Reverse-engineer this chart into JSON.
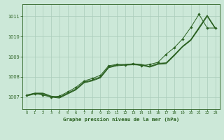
{
  "title": "Graphe pression niveau de la mer (hPa)",
  "bg_color": "#cce8d8",
  "grid_color": "#aaccbb",
  "line_color": "#2a6020",
  "xlim": [
    -0.5,
    23.5
  ],
  "ylim": [
    1006.4,
    1011.6
  ],
  "yticks": [
    1007,
    1008,
    1009,
    1010,
    1011
  ],
  "xticks": [
    0,
    1,
    2,
    3,
    4,
    5,
    6,
    7,
    8,
    9,
    10,
    11,
    12,
    13,
    14,
    15,
    16,
    17,
    18,
    19,
    20,
    21,
    22,
    23
  ],
  "line1_x": [
    0,
    1,
    2,
    3,
    4,
    5,
    6,
    7,
    8,
    9,
    10,
    11,
    12,
    13,
    14,
    15,
    16,
    17,
    18,
    19,
    20,
    21,
    22,
    23
  ],
  "line1_y": [
    1007.05,
    1007.15,
    1007.15,
    1007.0,
    1006.95,
    1007.15,
    1007.35,
    1007.7,
    1007.8,
    1007.95,
    1008.45,
    1008.55,
    1008.58,
    1008.6,
    1008.58,
    1008.48,
    1008.62,
    1008.65,
    1009.05,
    1009.48,
    1009.8,
    1010.38,
    1011.0,
    1010.38
  ],
  "line2_x": [
    0,
    1,
    2,
    3,
    4,
    5,
    6,
    7,
    8,
    9,
    10,
    11,
    12,
    13,
    14,
    15,
    16,
    17,
    18,
    19,
    20,
    21,
    22,
    23
  ],
  "line2_y": [
    1007.08,
    1007.18,
    1007.18,
    1007.02,
    1006.98,
    1007.18,
    1007.38,
    1007.73,
    1007.83,
    1007.98,
    1008.48,
    1008.58,
    1008.6,
    1008.63,
    1008.6,
    1008.5,
    1008.65,
    1008.68,
    1009.08,
    1009.5,
    1009.83,
    1010.42,
    1011.03,
    1010.4
  ],
  "line3_x": [
    0,
    1,
    2,
    3,
    4,
    5,
    6,
    7,
    8,
    9,
    10,
    11,
    12,
    13,
    14,
    15,
    16,
    17,
    18,
    19,
    20,
    21,
    22,
    23
  ],
  "line3_y": [
    1007.1,
    1007.2,
    1007.2,
    1007.05,
    1007.0,
    1007.2,
    1007.4,
    1007.75,
    1007.85,
    1008.0,
    1008.5,
    1008.6,
    1008.62,
    1008.65,
    1008.62,
    1008.52,
    1008.67,
    1008.7,
    1009.1,
    1009.52,
    1009.85,
    1010.45,
    1011.05,
    1010.42
  ],
  "obs_x": [
    0,
    1,
    2,
    3,
    4,
    5,
    6,
    7,
    8,
    9,
    10,
    11,
    12,
    13,
    14,
    15,
    16,
    17,
    18,
    19,
    20,
    21,
    22,
    23
  ],
  "obs_y": [
    1007.08,
    1007.18,
    1007.1,
    1007.0,
    1007.05,
    1007.25,
    1007.48,
    1007.8,
    1007.92,
    1008.08,
    1008.55,
    1008.62,
    1008.6,
    1008.65,
    1008.55,
    1008.62,
    1008.72,
    1009.12,
    1009.45,
    1009.88,
    1010.45,
    1011.1,
    1010.42,
    1010.42
  ]
}
